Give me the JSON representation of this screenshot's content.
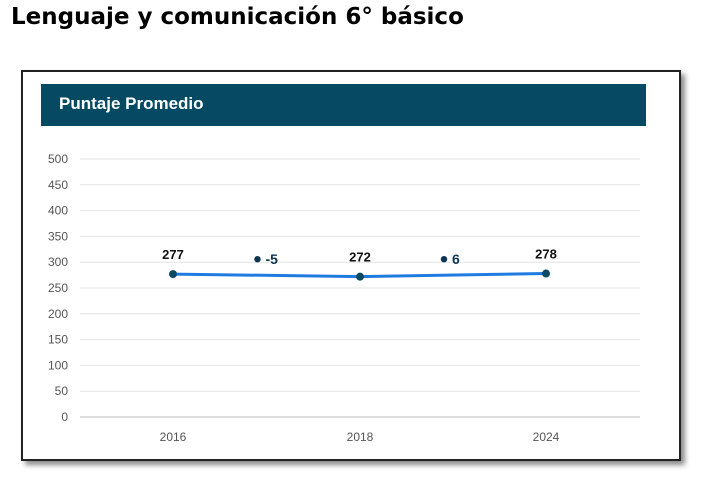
{
  "page": {
    "title": "Lenguaje y comunicación 6° básico"
  },
  "card": {
    "header_title": "Puntaje Promedio"
  },
  "colors": {
    "header_bg": "#054a62",
    "line": "#1f7be0",
    "point": "#0d4a63",
    "delta": "#0d3552"
  },
  "chart_data": {
    "type": "line",
    "categories": [
      "2016",
      "2018",
      "2024"
    ],
    "series": [
      {
        "values": [
          277,
          272,
          278
        ]
      }
    ],
    "data_labels": [
      "277",
      "272",
      "278"
    ],
    "deltas": [
      "-5",
      "6"
    ],
    "yticks": [
      "0",
      "50",
      "100",
      "150",
      "200",
      "250",
      "300",
      "350",
      "400",
      "450",
      "500"
    ],
    "ylim": [
      0,
      500
    ],
    "grid": true,
    "title": "Puntaje Promedio"
  }
}
